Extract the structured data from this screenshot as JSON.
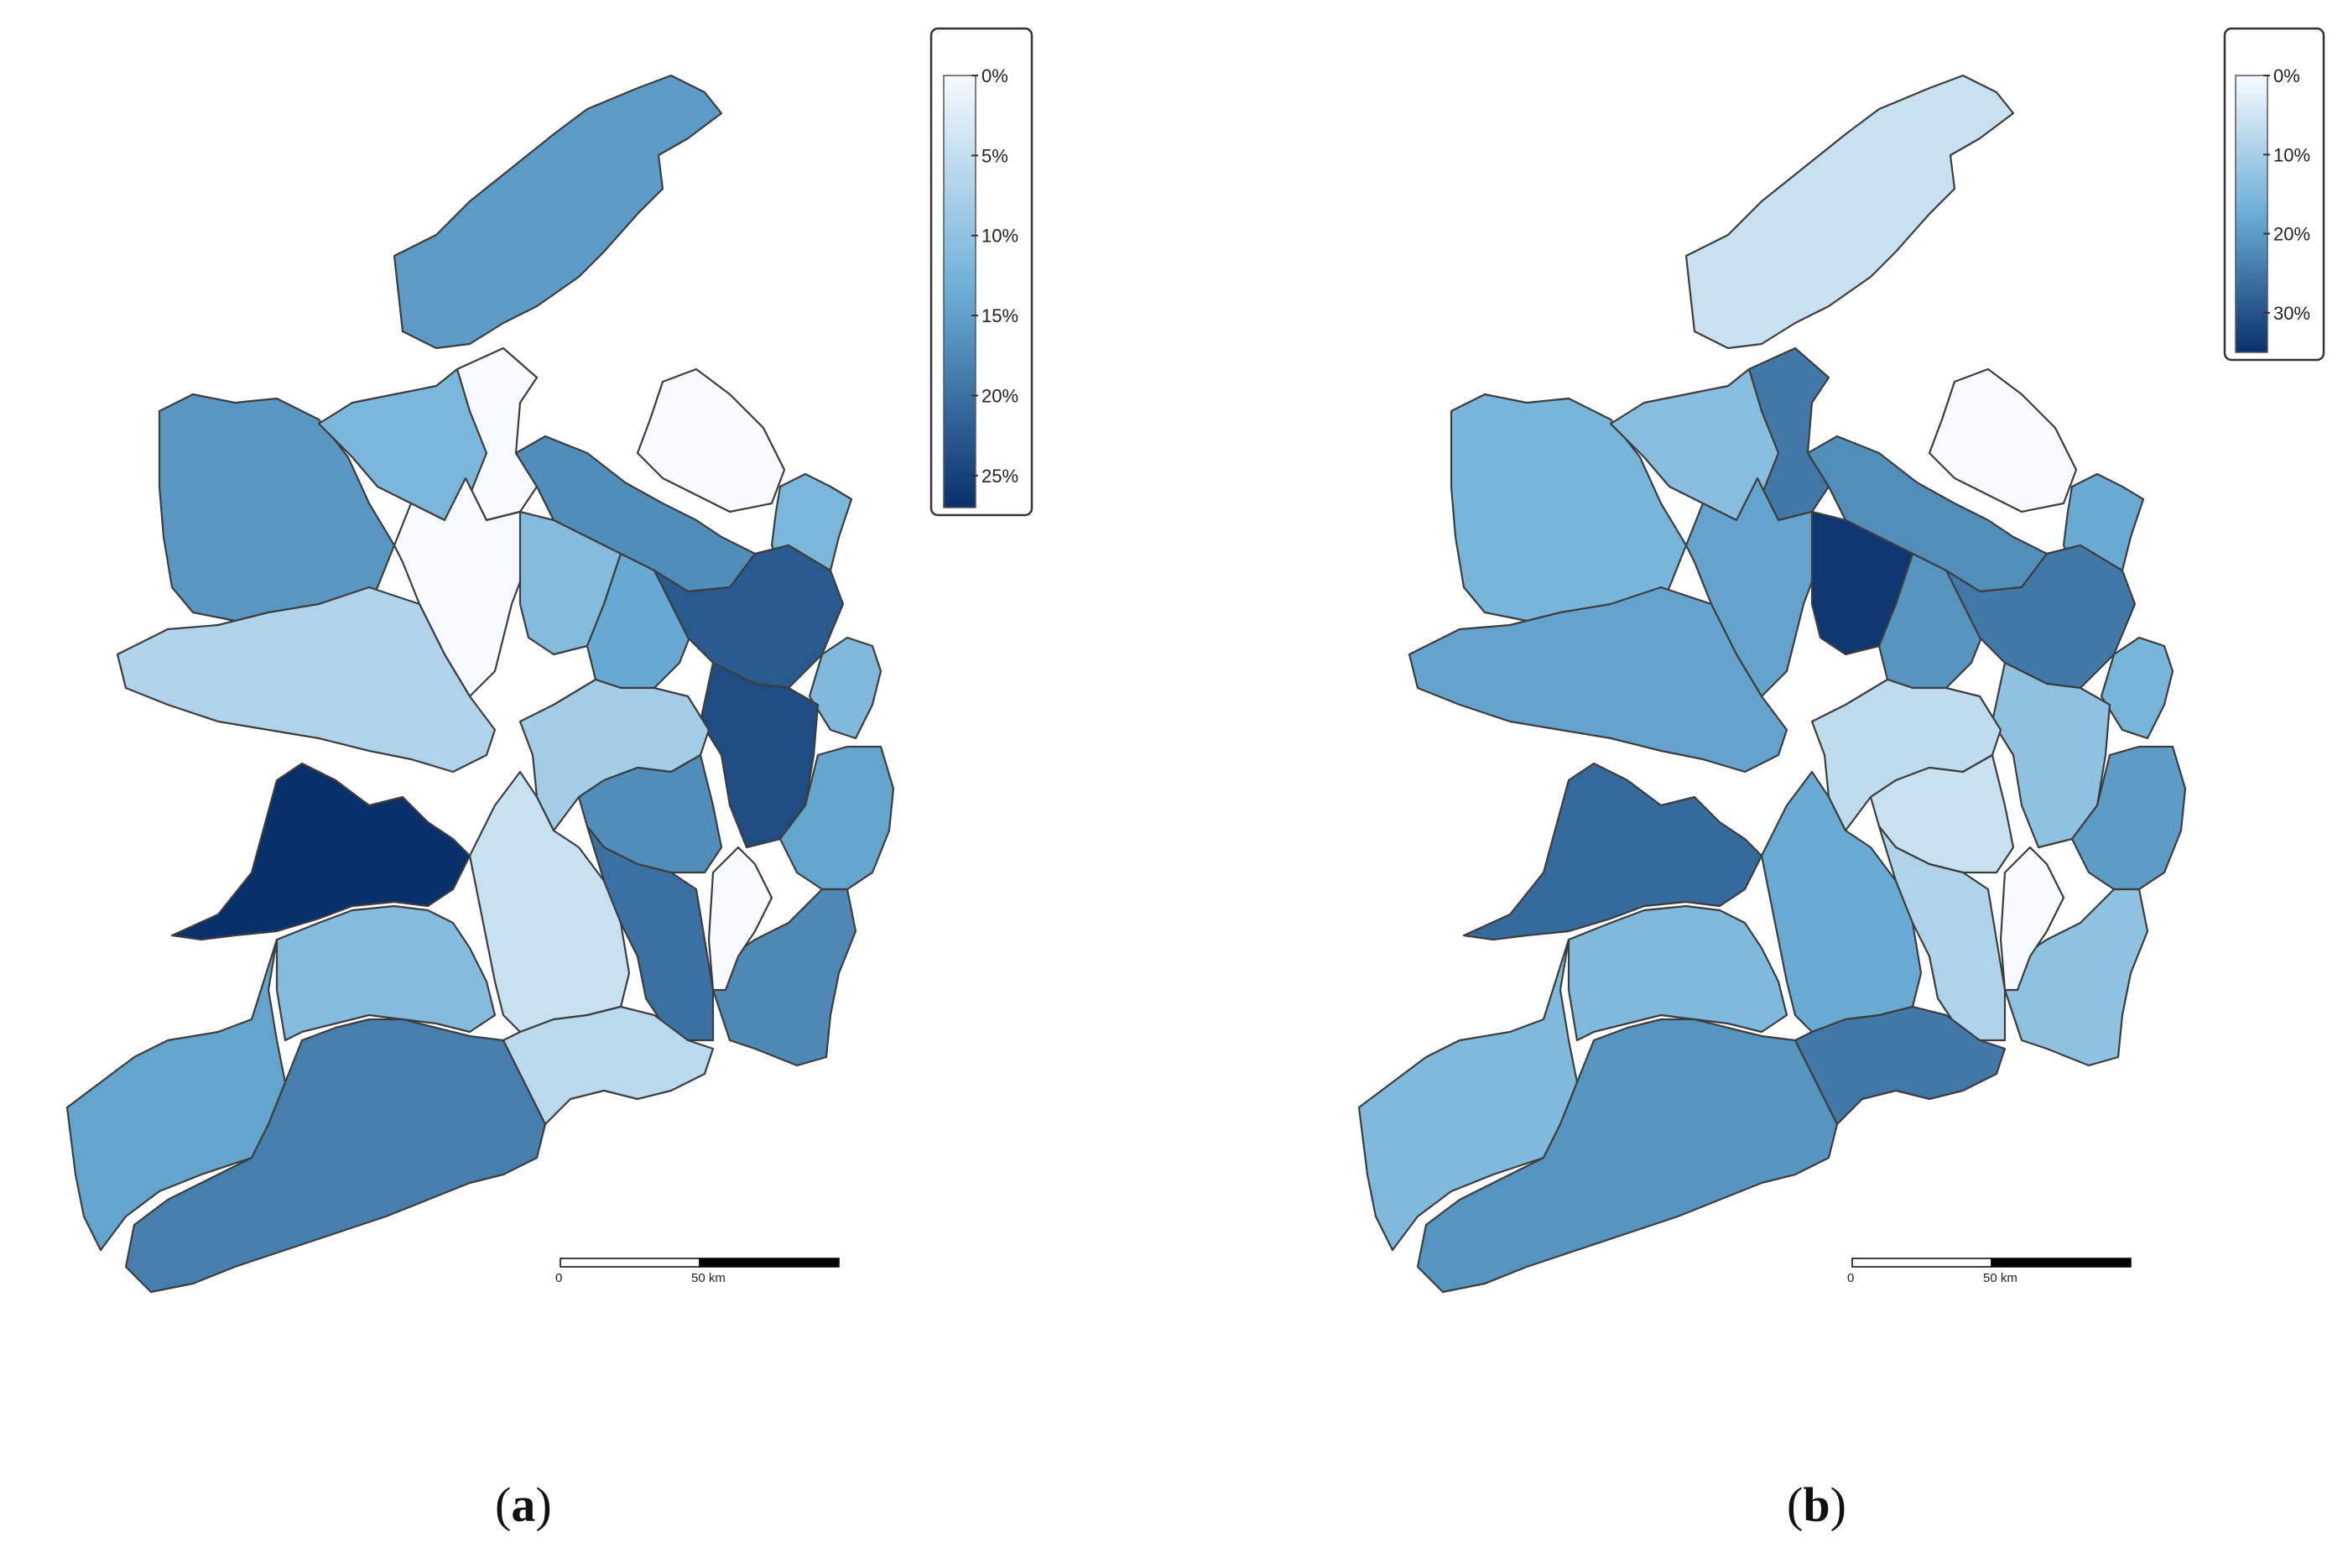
{
  "panels": [
    {
      "id": "a",
      "label_open": "(",
      "label_letter": "a",
      "label_close": ")",
      "legend": {
        "ticks": [
          "0%",
          "5%",
          "10%",
          "15%",
          "20%",
          "25%"
        ],
        "tick_values": [
          0,
          5,
          10,
          15,
          20,
          25
        ],
        "max_value": 27,
        "color_low": "#f7fbff",
        "color_high": "#08306b"
      },
      "scale_bar": {
        "start_label": "0",
        "mid_label": "50 km"
      },
      "regions": [
        {
          "key": "donegal",
          "value": 15.5
        },
        {
          "key": "north_west",
          "value": 0
        },
        {
          "key": "north_east",
          "value": 0
        },
        {
          "key": "fermanagh_cavan_north",
          "value": 17
        },
        {
          "key": "down",
          "value": 12
        },
        {
          "key": "mayo",
          "value": 16
        },
        {
          "key": "sligo_leitrim",
          "value": 12
        },
        {
          "key": "roscommon",
          "value": 0
        },
        {
          "key": "galway",
          "value": 7
        },
        {
          "key": "longford",
          "value": 11
        },
        {
          "key": "westmeath",
          "value": 14
        },
        {
          "key": "meath",
          "value": 22.5
        },
        {
          "key": "louth_south",
          "value": 11.5
        },
        {
          "key": "dublin",
          "value": 24
        },
        {
          "key": "offaly",
          "value": 8
        },
        {
          "key": "kildare",
          "value": 17
        },
        {
          "key": "wicklow",
          "value": 14.5
        },
        {
          "key": "clare",
          "value": 27
        },
        {
          "key": "tipperary",
          "value": 4.5
        },
        {
          "key": "carlow_kilkenny",
          "value": 20
        },
        {
          "key": "wexford",
          "value": 17.5
        },
        {
          "key": "kerry",
          "value": 14.5
        },
        {
          "key": "limerick",
          "value": 11
        },
        {
          "key": "cork",
          "value": 18.5
        },
        {
          "key": "waterford",
          "value": 6
        },
        {
          "key": "kilkenny_west",
          "value": 0
        }
      ]
    },
    {
      "id": "b",
      "label_open": "(",
      "label_letter": "b",
      "label_close": ")",
      "legend": {
        "ticks": [
          "0%",
          "10%",
          "20%",
          "30%"
        ],
        "tick_values": [
          0,
          10,
          20,
          30
        ],
        "max_value": 35,
        "color_low": "#f7fbff",
        "color_high": "#08306b"
      },
      "scale_bar": {
        "start_label": "0",
        "mid_label": "50 km"
      },
      "regions": [
        {
          "key": "donegal",
          "value": 6
        },
        {
          "key": "north_west",
          "value": 25
        },
        {
          "key": "north_east",
          "value": 0
        },
        {
          "key": "fermanagh_cavan_north",
          "value": 22
        },
        {
          "key": "down",
          "value": 18
        },
        {
          "key": "mayo",
          "value": 16
        },
        {
          "key": "sligo_leitrim",
          "value": 14
        },
        {
          "key": "roscommon",
          "value": 19
        },
        {
          "key": "galway",
          "value": 19
        },
        {
          "key": "longford",
          "value": 34
        },
        {
          "key": "westmeath",
          "value": 21
        },
        {
          "key": "meath",
          "value": 25
        },
        {
          "key": "louth_south",
          "value": 16
        },
        {
          "key": "dublin",
          "value": 13
        },
        {
          "key": "offaly",
          "value": 7
        },
        {
          "key": "kildare",
          "value": 6
        },
        {
          "key": "wicklow",
          "value": 20
        },
        {
          "key": "clare",
          "value": 27
        },
        {
          "key": "tipperary",
          "value": 18
        },
        {
          "key": "carlow_kilkenny",
          "value": 9
        },
        {
          "key": "wexford",
          "value": 13
        },
        {
          "key": "kerry",
          "value": 15
        },
        {
          "key": "limerick",
          "value": 15
        },
        {
          "key": "cork",
          "value": 21
        },
        {
          "key": "waterford",
          "value": 25
        },
        {
          "key": "kilkenny_west",
          "value": 0
        }
      ]
    }
  ]
}
